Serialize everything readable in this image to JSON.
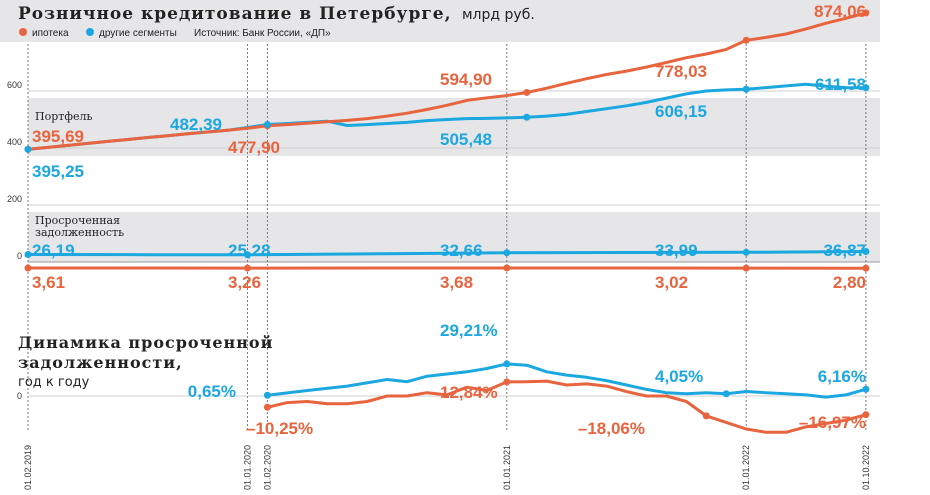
{
  "colors": {
    "mortgage": "#E8643E",
    "other": "#1BA7E0",
    "band": "#e6e6e8"
  },
  "header": {
    "title": "Розничное кредитование в Петербурге,",
    "unit": "млрд руб.",
    "legend_mortgage": "ипотека",
    "legend_other": "другие сегменты",
    "source": "Источник: Банк России, «ДП»"
  },
  "labels": {
    "portfolio": "Портфель",
    "overdue_line1": "Просроченная",
    "overdue_line2": "задолженность",
    "yoy_line1": "Динамика просроченной",
    "yoy_line2": "задолженности,",
    "yoy_unit": "год к году"
  },
  "chart_data": [
    {
      "type": "line",
      "title": "Портфель",
      "y_ticks": [
        "0",
        "200",
        "400",
        "600"
      ],
      "ylim": [
        0,
        880
      ],
      "x_dates": [
        "01.02.2019",
        "01.01.2020",
        "01.02.2020",
        "01.01.2021",
        "01.01.2022",
        "01.10.2022"
      ],
      "series": [
        {
          "name": "ипотека",
          "x": [
            0,
            1,
            2,
            3,
            4,
            5,
            6,
            7,
            8,
            9,
            10,
            11,
            12,
            13,
            14,
            15,
            16,
            17,
            18,
            19,
            20,
            21,
            22,
            23,
            24,
            25,
            26,
            27,
            28,
            29,
            30,
            31,
            32,
            33,
            34,
            35,
            36,
            37,
            38,
            39,
            40,
            41,
            42
          ],
          "values": [
            395.69,
            402,
            409,
            416,
            423,
            430,
            437,
            443,
            450,
            456,
            462,
            469,
            477.9,
            482,
            487,
            492,
            497,
            503,
            512,
            522,
            535,
            550,
            567,
            576,
            584,
            594.9,
            610,
            627,
            643,
            658,
            670,
            684,
            700,
            717,
            730,
            746,
            778.03,
            788,
            800,
            818,
            838,
            855,
            874.06
          ]
        },
        {
          "name": "другие сегменты",
          "x": [
            0,
            1,
            2,
            3,
            4,
            5,
            6,
            7,
            8,
            9,
            10,
            11,
            12,
            13,
            14,
            15,
            16,
            17,
            18,
            19,
            20,
            21,
            22,
            23,
            24,
            25,
            26,
            27,
            28,
            29,
            30,
            31,
            32,
            33,
            34,
            35,
            36,
            37,
            38,
            39,
            40,
            41,
            42
          ],
          "values": [
            395.25,
            402,
            409,
            416,
            423,
            430,
            437,
            443,
            450,
            456,
            462,
            472,
            482.39,
            486,
            490,
            494,
            479,
            482,
            486,
            490,
            496,
            500,
            503,
            504,
            505.48,
            508,
            512,
            518,
            528,
            538,
            548,
            560,
            575,
            590,
            600,
            604,
            606.15,
            612,
            618,
            624,
            617,
            612,
            611.58
          ]
        }
      ],
      "data_labels": {
        "mortgage": [
          "395,69",
          "477,90",
          "594,90",
          "778,03",
          "874,06"
        ],
        "other": [
          "395,25",
          "482,39",
          "505,48",
          "606,15",
          "611,58"
        ]
      }
    },
    {
      "type": "line",
      "title": "Просроченная задолженность",
      "series": [
        {
          "name": "другие сегменты",
          "values": [
            26.19,
            25.28,
            32.66,
            33.99,
            36.87
          ]
        },
        {
          "name": "ипотека",
          "values": [
            3.61,
            3.26,
            3.68,
            3.02,
            2.8
          ]
        }
      ],
      "data_labels": {
        "other": [
          "26,19",
          "25,28",
          "32,66",
          "33,99",
          "36,87"
        ],
        "mortgage": [
          "3,61",
          "3,26",
          "3,68",
          "3,02",
          "2,80"
        ]
      }
    },
    {
      "type": "line",
      "title": "Динамика просроченной задолженности, год к году",
      "y_ticks": [
        "0"
      ],
      "series": [
        {
          "name": "другие сегменты",
          "x": [
            12,
            14,
            16,
            18,
            19,
            20,
            22,
            23,
            24,
            25,
            26,
            27,
            28,
            29,
            30,
            31,
            32,
            33,
            34,
            35,
            36,
            37,
            38,
            39,
            40,
            41,
            42
          ],
          "values": [
            0.65,
            5,
            9,
            15,
            13,
            18,
            22,
            25,
            29.21,
            28,
            22,
            19,
            17,
            14,
            10,
            6,
            3,
            2,
            3,
            2,
            4.05,
            3,
            2,
            1,
            -1,
            1,
            6.16
          ]
        },
        {
          "name": "ипотека",
          "x": [
            12,
            13,
            14,
            15,
            16,
            17,
            18,
            19,
            20,
            21,
            22,
            23,
            24,
            25,
            26,
            27,
            28,
            29,
            30,
            31,
            32,
            33,
            34,
            35,
            36,
            37,
            38,
            39,
            40,
            41,
            42
          ],
          "values": [
            -10.25,
            -6,
            -5,
            -7,
            -7,
            -5,
            0,
            0,
            3,
            1,
            8,
            5,
            12.84,
            13,
            13.5,
            10,
            11,
            9,
            4,
            0,
            0,
            -5,
            -18.06,
            -24,
            -30,
            -33,
            -33,
            -28,
            -25,
            -22,
            -16.97
          ]
        }
      ],
      "data_labels": {
        "other": [
          "0,65%",
          "29,21%",
          "4,05%",
          "6,16%"
        ],
        "mortgage": [
          "–10,25%",
          "12,84%",
          "–18,06%",
          "–16,97%"
        ]
      }
    }
  ]
}
